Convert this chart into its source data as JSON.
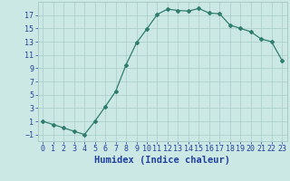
{
  "xlabel": "Humidex (Indice chaleur)",
  "x_values": [
    0,
    1,
    2,
    3,
    4,
    5,
    6,
    7,
    8,
    9,
    10,
    11,
    12,
    13,
    14,
    15,
    16,
    17,
    18,
    19,
    20,
    21,
    22,
    23
  ],
  "y_values": [
    1,
    0.5,
    0,
    -0.5,
    -1,
    1,
    3.2,
    5.5,
    9.5,
    12.8,
    14.9,
    17.1,
    17.9,
    17.7,
    17.6,
    18.0,
    17.3,
    17.2,
    15.5,
    15.0,
    14.5,
    13.4,
    13.0,
    10.2
  ],
  "line_color": "#2e7d6e",
  "bg_color": "#cce8e4",
  "grid_color": "#a8ccc8",
  "ylim": [
    -2,
    19
  ],
  "yticks": [
    -1,
    1,
    3,
    5,
    7,
    9,
    11,
    13,
    15,
    17
  ],
  "xlim": [
    -0.5,
    23.5
  ],
  "xticks": [
    0,
    1,
    2,
    3,
    4,
    5,
    6,
    7,
    8,
    9,
    10,
    11,
    12,
    13,
    14,
    15,
    16,
    17,
    18,
    19,
    20,
    21,
    22,
    23
  ],
  "font_color": "#2040a0",
  "tick_label_size": 6,
  "xlabel_size": 7.5,
  "marker": "D",
  "marker_size": 2.0,
  "line_width": 0.9
}
